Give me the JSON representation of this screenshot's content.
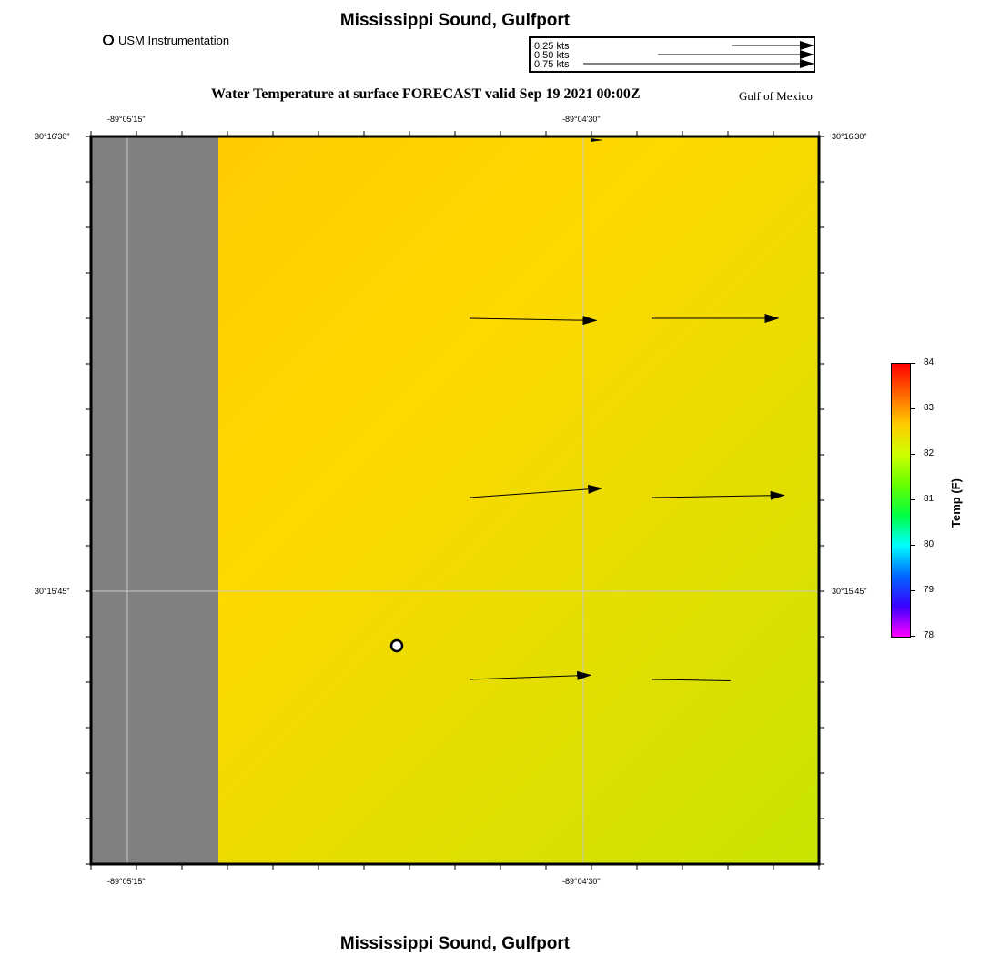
{
  "header": {
    "title": "Mississippi Sound, Gulfport",
    "subtitle": "Water Temperature at surface FORECAST valid Sep 19 2021 00:00Z",
    "region": "Gulf of Mexico"
  },
  "legend": {
    "marker_label": "USM Instrumentation"
  },
  "vector_scale": {
    "labels": [
      "0.25 kts",
      "0.50 kts",
      "0.75 kts"
    ]
  },
  "axes": {
    "lon_ticks": [
      "-89°05'15\"",
      "-89°04'30\""
    ],
    "lat_ticks": [
      "30°16'30\"",
      "30°15'45\""
    ]
  },
  "colorbar": {
    "title": "Temp (F)",
    "ticks": [
      "84",
      "83",
      "82",
      "81",
      "80",
      "79",
      "78"
    ],
    "min": 78,
    "max": 84,
    "colors": [
      "#ff00ff",
      "#3a00ff",
      "#0066ff",
      "#00ffff",
      "#00ff44",
      "#66ff00",
      "#ccff00",
      "#ffcc00",
      "#ff6600",
      "#ff0000"
    ]
  },
  "map": {
    "land_color": "#808080",
    "water_colors": [
      "#ffc800",
      "#ffd800",
      "#e3de00",
      "#c8e400"
    ],
    "current_vectors_kts": [
      {
        "row": 1,
        "col": 1,
        "speed": 0.45,
        "dir_deg": 1
      },
      {
        "row": 1,
        "col": 2,
        "speed": 0.45,
        "dir_deg": 0
      },
      {
        "row": 2,
        "col": 1,
        "speed": 0.47,
        "dir_deg": -4
      },
      {
        "row": 2,
        "col": 2,
        "speed": 0.47,
        "dir_deg": -1
      },
      {
        "row": 3,
        "col": 1,
        "speed": 0.43,
        "dir_deg": -2
      },
      {
        "row": 3,
        "col": 2,
        "speed": 0.28,
        "dir_deg": 1
      }
    ]
  },
  "footer": {
    "title": "Mississippi Sound, Gulfport"
  }
}
